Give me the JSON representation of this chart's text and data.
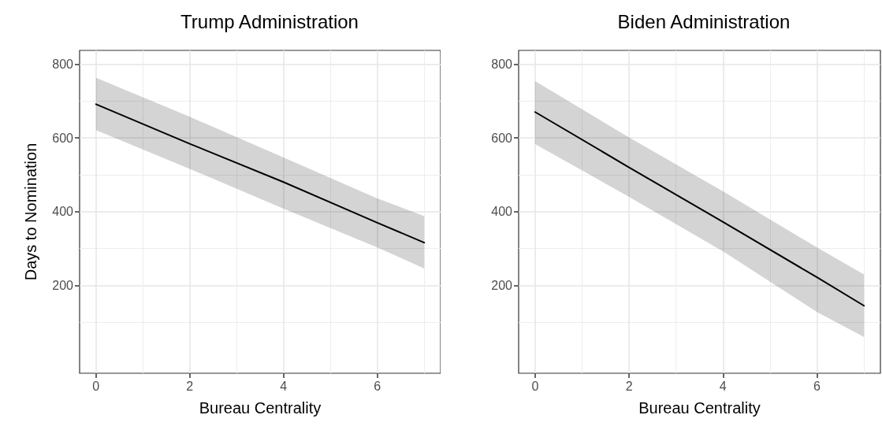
{
  "chart_data": [
    {
      "type": "line",
      "title": "Trump Administration",
      "xlabel": "Bureau Centrality",
      "ylabel": "Days to Nomination",
      "xlim": [
        -0.35,
        7.35
      ],
      "ylim": [
        -38,
        837
      ],
      "xticks": [
        0,
        2,
        4,
        6
      ],
      "yticks": [
        200,
        400,
        600,
        800
      ],
      "grid": true,
      "marker": "none",
      "line_style": "solid",
      "series": [
        {
          "color": "#000000",
          "x": [
            0,
            2,
            4,
            6,
            7
          ],
          "values": [
            691,
            584,
            480,
            370,
            316
          ],
          "lower": [
            621,
            516,
            408,
            303,
            246
          ],
          "upper": [
            763,
            657,
            547,
            436,
            388
          ]
        }
      ]
    },
    {
      "type": "line",
      "title": "Biden Administration",
      "xlabel": "Bureau Centrality",
      "xlim": [
        -0.35,
        7.35
      ],
      "ylim": [
        -38,
        837
      ],
      "xticks": [
        0,
        2,
        4,
        6
      ],
      "yticks": [
        200,
        400,
        600,
        800
      ],
      "grid": true,
      "marker": "none",
      "line_style": "solid",
      "series": [
        {
          "color": "#000000",
          "x": [
            0,
            2,
            4,
            6,
            7
          ],
          "values": [
            670,
            520,
            372,
            222,
            145
          ],
          "lower": [
            583,
            440,
            292,
            128,
            60
          ],
          "upper": [
            754,
            601,
            455,
            303,
            230
          ]
        }
      ]
    }
  ]
}
